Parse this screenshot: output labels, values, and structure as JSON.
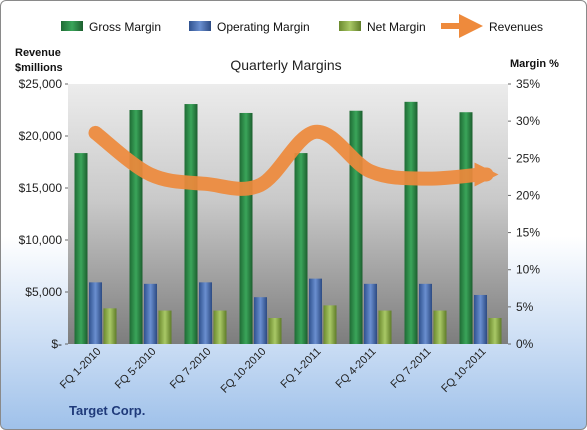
{
  "chart_data": {
    "type": "bar",
    "title": "Quarterly Margins",
    "footer": "Target Corp.",
    "y_left_title": [
      "Revenue",
      "$millions"
    ],
    "y_right_title": "Margin %",
    "categories": [
      "FQ 1-2010",
      "FQ 5-2010",
      "FQ 7-2010",
      "FQ 10-2010",
      "FQ 1-2011",
      "FQ 4-2011",
      "FQ 7-2011",
      "FQ 10-2011"
    ],
    "y_left_range": [
      0,
      25000
    ],
    "y_left_ticks": [
      {
        "v": 0,
        "label": "$-"
      },
      {
        "v": 5000,
        "label": "$5,000"
      },
      {
        "v": 10000,
        "label": "$10,000"
      },
      {
        "v": 15000,
        "label": "$15,000"
      },
      {
        "v": 20000,
        "label": "$20,000"
      },
      {
        "v": 25000,
        "label": "$25,000"
      }
    ],
    "y_right_range": [
      0,
      35
    ],
    "y_right_ticks": [
      {
        "v": 0,
        "label": "0%"
      },
      {
        "v": 5,
        "label": "5%"
      },
      {
        "v": 10,
        "label": "10%"
      },
      {
        "v": 15,
        "label": "15%"
      },
      {
        "v": 20,
        "label": "20%"
      },
      {
        "v": 25,
        "label": "25%"
      },
      {
        "v": 30,
        "label": "30%"
      },
      {
        "v": 35,
        "label": "35%"
      }
    ],
    "series": [
      {
        "name": "Gross Margin",
        "axis": "right",
        "kind": "bar",
        "color": "#2e8b4a",
        "values": [
          25.7,
          31.5,
          32.3,
          31.1,
          25.7,
          31.4,
          32.6,
          31.2
        ]
      },
      {
        "name": "Operating Margin",
        "axis": "right",
        "kind": "bar",
        "color": "#4a6fb5",
        "values": [
          8.3,
          8.1,
          8.3,
          6.3,
          8.8,
          8.1,
          8.1,
          6.6
        ]
      },
      {
        "name": "Net Margin",
        "axis": "right",
        "kind": "bar",
        "color": "#8db04a",
        "values": [
          4.8,
          4.5,
          4.5,
          3.5,
          5.2,
          4.5,
          4.5,
          3.5
        ]
      },
      {
        "name": "Revenues",
        "axis": "left",
        "kind": "line",
        "color": "#ee8a3c",
        "values": [
          20300,
          16300,
          15400,
          15300,
          20400,
          16600,
          15900,
          16300
        ]
      }
    ],
    "legend_position": "top"
  }
}
